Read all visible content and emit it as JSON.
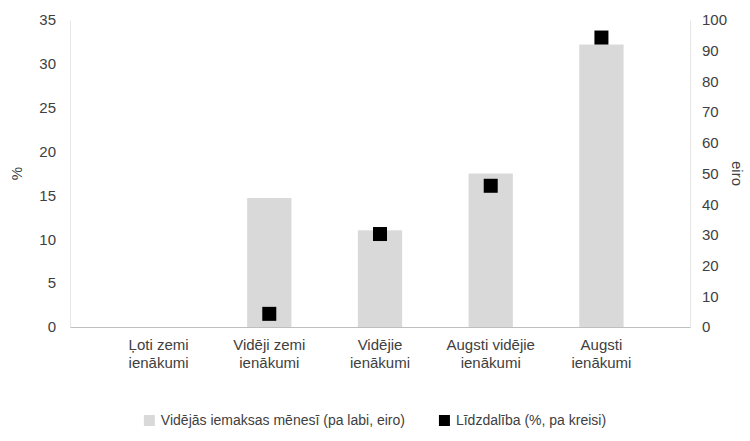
{
  "chart_data": {
    "type": "bar",
    "categories": [
      "Ļoti zemi ienākumi",
      "Vidēji zemi ienākumi",
      "Vidējie ienākumi",
      "Augsti vidējie ienākumi",
      "Augsti ienākumi"
    ],
    "series": [
      {
        "name": "Vidējās iemaksas mēnesī (pa labi, eiro)",
        "type": "bar",
        "color": "#d9d9d9",
        "axis": "y2",
        "values": [
          null,
          42,
          31.5,
          50,
          92
        ]
      },
      {
        "name": "Līdzdalība (%, pa kreisi)",
        "type": "scatter",
        "color": "#000000",
        "marker": "square",
        "values": [
          null,
          1.5,
          10.6,
          16.1,
          33
        ]
      }
    ],
    "ylabel": "%",
    "y2label": "eiro",
    "ylim": [
      0,
      35
    ],
    "yticks": [
      0,
      5,
      10,
      15,
      20,
      25,
      30,
      35
    ],
    "y2lim": [
      0,
      100
    ],
    "y2ticks": [
      0,
      10,
      20,
      30,
      40,
      50,
      60,
      70,
      80,
      90,
      100
    ],
    "grid": false,
    "legend": "bottom"
  }
}
